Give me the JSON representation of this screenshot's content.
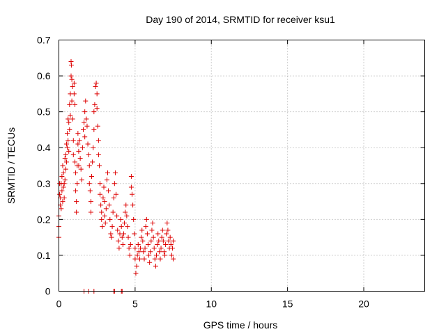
{
  "chart_data": {
    "type": "scatter",
    "title": "Day 190 of 2014, SRMTID for receiver ksu1",
    "xlabel": "GPS time / hours",
    "ylabel": "SRMTID / TECUs",
    "xlim": [
      0,
      24
    ],
    "ylim": [
      0,
      0.7
    ],
    "xticks": [
      0,
      5,
      10,
      15,
      20
    ],
    "xtick_labels": [
      "0",
      "5",
      "10",
      "15",
      "20"
    ],
    "yticks": [
      0,
      0.1,
      0.2,
      0.3,
      0.4,
      0.5,
      0.6,
      0.7
    ],
    "ytick_labels": [
      "0",
      "0.1",
      "0.2",
      "0.3",
      "0.4",
      "0.5",
      "0.6",
      "0.7"
    ],
    "grid": true,
    "marker": "plus",
    "color": "#dd0000",
    "series": [
      {
        "name": "SRMTID",
        "points": [
          [
            0.0,
            0.15
          ],
          [
            0.0,
            0.18
          ],
          [
            0.0,
            0.21
          ],
          [
            0.05,
            0.27
          ],
          [
            0.05,
            0.3
          ],
          [
            0.1,
            0.24
          ],
          [
            0.1,
            0.26
          ],
          [
            0.15,
            0.23
          ],
          [
            0.15,
            0.3
          ],
          [
            0.2,
            0.32
          ],
          [
            0.2,
            0.28
          ],
          [
            0.25,
            0.25
          ],
          [
            0.25,
            0.35
          ],
          [
            0.3,
            0.33
          ],
          [
            0.3,
            0.29
          ],
          [
            0.35,
            0.3
          ],
          [
            0.35,
            0.26
          ],
          [
            0.4,
            0.37
          ],
          [
            0.4,
            0.31
          ],
          [
            0.45,
            0.38
          ],
          [
            0.45,
            0.34
          ],
          [
            0.5,
            0.41
          ],
          [
            0.5,
            0.36
          ],
          [
            0.55,
            0.44
          ],
          [
            0.55,
            0.4
          ],
          [
            0.6,
            0.48
          ],
          [
            0.6,
            0.42
          ],
          [
            0.65,
            0.47
          ],
          [
            0.65,
            0.39
          ],
          [
            0.7,
            0.52
          ],
          [
            0.7,
            0.45
          ],
          [
            0.75,
            0.55
          ],
          [
            0.75,
            0.49
          ],
          [
            0.8,
            0.64
          ],
          [
            0.8,
            0.6
          ],
          [
            0.82,
            0.63
          ],
          [
            0.85,
            0.59
          ],
          [
            0.85,
            0.53
          ],
          [
            0.9,
            0.57
          ],
          [
            0.9,
            0.48
          ],
          [
            0.95,
            0.42
          ],
          [
            0.95,
            0.38
          ],
          [
            1.0,
            0.58
          ],
          [
            1.0,
            0.55
          ],
          [
            1.05,
            0.52
          ],
          [
            1.05,
            0.36
          ],
          [
            1.1,
            0.33
          ],
          [
            1.1,
            0.28
          ],
          [
            1.15,
            0.25
          ],
          [
            1.15,
            0.22
          ],
          [
            1.2,
            0.3
          ],
          [
            1.2,
            0.35
          ],
          [
            1.25,
            0.41
          ],
          [
            1.25,
            0.44
          ],
          [
            1.3,
            0.39
          ],
          [
            1.3,
            0.35
          ],
          [
            1.35,
            0.42
          ],
          [
            1.4,
            0.37
          ],
          [
            1.45,
            0.34
          ],
          [
            1.5,
            0.31
          ],
          [
            1.55,
            0.4
          ],
          [
            1.6,
            0.45
          ],
          [
            1.65,
            0.47
          ],
          [
            1.7,
            0.5
          ],
          [
            1.7,
            0.43
          ],
          [
            1.75,
            0.53
          ],
          [
            1.8,
            0.48
          ],
          [
            1.85,
            0.46
          ],
          [
            1.9,
            0.41
          ],
          [
            1.95,
            0.38
          ],
          [
            2.0,
            0.3
          ],
          [
            2.0,
            0.35
          ],
          [
            2.05,
            0.28
          ],
          [
            2.1,
            0.25
          ],
          [
            2.1,
            0.22
          ],
          [
            2.15,
            0.32
          ],
          [
            2.2,
            0.36
          ],
          [
            2.25,
            0.4
          ],
          [
            2.3,
            0.45
          ],
          [
            2.3,
            0.5
          ],
          [
            2.35,
            0.52
          ],
          [
            2.4,
            0.57
          ],
          [
            2.45,
            0.58
          ],
          [
            2.5,
            0.55
          ],
          [
            2.5,
            0.51
          ],
          [
            2.55,
            0.46
          ],
          [
            2.6,
            0.42
          ],
          [
            2.6,
            0.38
          ],
          [
            2.65,
            0.35
          ],
          [
            2.7,
            0.3
          ],
          [
            2.7,
            0.27
          ],
          [
            2.75,
            0.24
          ],
          [
            2.8,
            0.22
          ],
          [
            2.8,
            0.2
          ],
          [
            2.85,
            0.18
          ],
          [
            2.9,
            0.26
          ],
          [
            2.95,
            0.29
          ],
          [
            3.0,
            0.25
          ],
          [
            3.0,
            0.21
          ],
          [
            3.05,
            0.19
          ],
          [
            3.1,
            0.23
          ],
          [
            3.15,
            0.31
          ],
          [
            3.2,
            0.33
          ],
          [
            3.25,
            0.28
          ],
          [
            3.3,
            0.24
          ],
          [
            3.35,
            0.2
          ],
          [
            3.4,
            0.16
          ],
          [
            3.45,
            0.15
          ],
          [
            3.5,
            0.18
          ],
          [
            3.55,
            0.22
          ],
          [
            3.6,
            0.26
          ],
          [
            3.65,
            0.3
          ],
          [
            3.7,
            0.33
          ],
          [
            3.75,
            0.27
          ],
          [
            3.8,
            0.21
          ],
          [
            3.85,
            0.17
          ],
          [
            3.9,
            0.14
          ],
          [
            3.95,
            0.12
          ],
          [
            4.0,
            0.16
          ],
          [
            4.05,
            0.2
          ],
          [
            4.1,
            0.18
          ],
          [
            4.15,
            0.15
          ],
          [
            4.2,
            0.13
          ],
          [
            4.25,
            0.16
          ],
          [
            4.3,
            0.19
          ],
          [
            4.35,
            0.22
          ],
          [
            4.4,
            0.24
          ],
          [
            4.45,
            0.21
          ],
          [
            4.5,
            0.18
          ],
          [
            4.55,
            0.15
          ],
          [
            4.6,
            0.12
          ],
          [
            4.65,
            0.1
          ],
          [
            4.7,
            0.13
          ],
          [
            4.75,
            0.32
          ],
          [
            4.75,
            0.29
          ],
          [
            4.8,
            0.27
          ],
          [
            4.85,
            0.24
          ],
          [
            4.9,
            0.2
          ],
          [
            4.95,
            0.16
          ],
          [
            5.0,
            0.12
          ],
          [
            5.0,
            0.09
          ],
          [
            5.05,
            0.05
          ],
          [
            5.1,
            0.07
          ],
          [
            5.15,
            0.1
          ],
          [
            5.2,
            0.13
          ],
          [
            5.25,
            0.11
          ],
          [
            5.3,
            0.09
          ],
          [
            5.35,
            0.12
          ],
          [
            5.4,
            0.15
          ],
          [
            5.45,
            0.17
          ],
          [
            5.5,
            0.14
          ],
          [
            5.55,
            0.11
          ],
          [
            5.6,
            0.09
          ],
          [
            5.65,
            0.12
          ],
          [
            5.7,
            0.18
          ],
          [
            5.75,
            0.2
          ],
          [
            5.8,
            0.16
          ],
          [
            5.85,
            0.13
          ],
          [
            5.9,
            0.1
          ],
          [
            5.95,
            0.08
          ],
          [
            6.0,
            0.11
          ],
          [
            6.05,
            0.14
          ],
          [
            6.1,
            0.17
          ],
          [
            6.15,
            0.19
          ],
          [
            6.2,
            0.15
          ],
          [
            6.25,
            0.12
          ],
          [
            6.3,
            0.09
          ],
          [
            6.35,
            0.07
          ],
          [
            6.4,
            0.1
          ],
          [
            6.45,
            0.13
          ],
          [
            6.5,
            0.16
          ],
          [
            6.55,
            0.14
          ],
          [
            6.6,
            0.11
          ],
          [
            6.65,
            0.09
          ],
          [
            6.7,
            0.12
          ],
          [
            6.75,
            0.15
          ],
          [
            6.8,
            0.17
          ],
          [
            6.85,
            0.14
          ],
          [
            6.9,
            0.11
          ],
          [
            6.95,
            0.1
          ],
          [
            7.0,
            0.13
          ],
          [
            7.05,
            0.16
          ],
          [
            7.1,
            0.19
          ],
          [
            7.15,
            0.17
          ],
          [
            7.2,
            0.14
          ],
          [
            7.25,
            0.12
          ],
          [
            7.3,
            0.15
          ],
          [
            7.35,
            0.13
          ],
          [
            7.4,
            0.1
          ],
          [
            7.45,
            0.12
          ],
          [
            7.5,
            0.09
          ],
          [
            7.5,
            0.14
          ],
          [
            1.65,
            0.0
          ],
          [
            1.95,
            0.0
          ],
          [
            2.3,
            0.0
          ],
          [
            3.6,
            0.0
          ],
          [
            3.65,
            0.0
          ],
          [
            4.1,
            0.0
          ],
          [
            4.15,
            0.0
          ]
        ]
      }
    ]
  }
}
